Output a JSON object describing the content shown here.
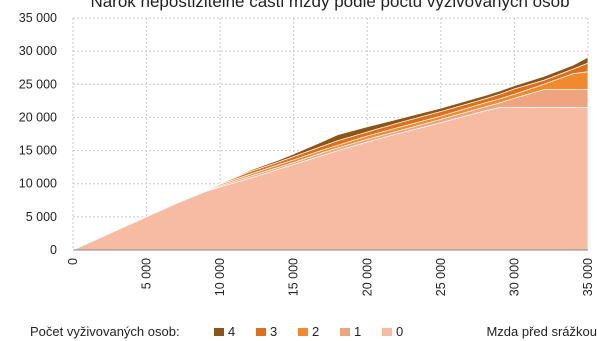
{
  "chart_data": {
    "type": "area",
    "title": "Nárok nepostižitelné části mzdy podle počtu vyživovaných osob",
    "xlabel": "Mzda před srážkou",
    "ylabel": "",
    "x": [
      0,
      2000,
      5000,
      7000,
      9000,
      10000,
      12000,
      14000,
      15000,
      17000,
      18000,
      20000,
      22000,
      25000,
      28000,
      29000,
      30000,
      32000,
      34000,
      35000
    ],
    "xlim": [
      0,
      35000
    ],
    "ylim": [
      0,
      35000
    ],
    "x_ticks": [
      "0",
      "5 000",
      "10 000",
      "15 000",
      "20 000",
      "25 000",
      "30 000",
      "35 000"
    ],
    "y_ticks": [
      "0",
      "5 000",
      "10 000",
      "15 000",
      "20 000",
      "25 000",
      "30 000",
      "35 000"
    ],
    "grid": true,
    "legend_title": "Počet vyživovaných osob:",
    "legend_position": "bottom",
    "series": [
      {
        "name": "0",
        "color": "#f6bba0",
        "values": [
          0,
          2000,
          5000,
          7000,
          8800,
          9500,
          10800,
          12200,
          12900,
          14300,
          15000,
          16300,
          17500,
          19200,
          21000,
          21500,
          21500,
          21500,
          21500,
          21500
        ]
      },
      {
        "name": "1",
        "color": "#eea57f",
        "values": [
          0,
          2000,
          5000,
          7000,
          8800,
          9700,
          11100,
          12500,
          13200,
          14700,
          15400,
          16700,
          17900,
          19700,
          21600,
          22200,
          22900,
          24200,
          24200,
          24200
        ]
      },
      {
        "name": "2",
        "color": "#f08a2e",
        "values": [
          0,
          2000,
          5000,
          7000,
          8900,
          9900,
          11400,
          12900,
          13600,
          15100,
          15800,
          17200,
          18400,
          20200,
          22200,
          22800,
          23500,
          25000,
          26600,
          26900
        ]
      },
      {
        "name": "3",
        "color": "#de6f1c",
        "values": [
          0,
          2000,
          5000,
          7000,
          9000,
          10000,
          11800,
          13300,
          14100,
          15700,
          16500,
          17800,
          19100,
          20900,
          22800,
          23500,
          24300,
          25600,
          27300,
          28200
        ]
      },
      {
        "name": "4",
        "color": "#8b5518",
        "values": [
          0,
          2000,
          5000,
          7000,
          9000,
          10000,
          12000,
          13600,
          14500,
          16400,
          17400,
          18600,
          19700,
          21400,
          23300,
          24000,
          24800,
          26200,
          27900,
          29100
        ]
      }
    ]
  }
}
